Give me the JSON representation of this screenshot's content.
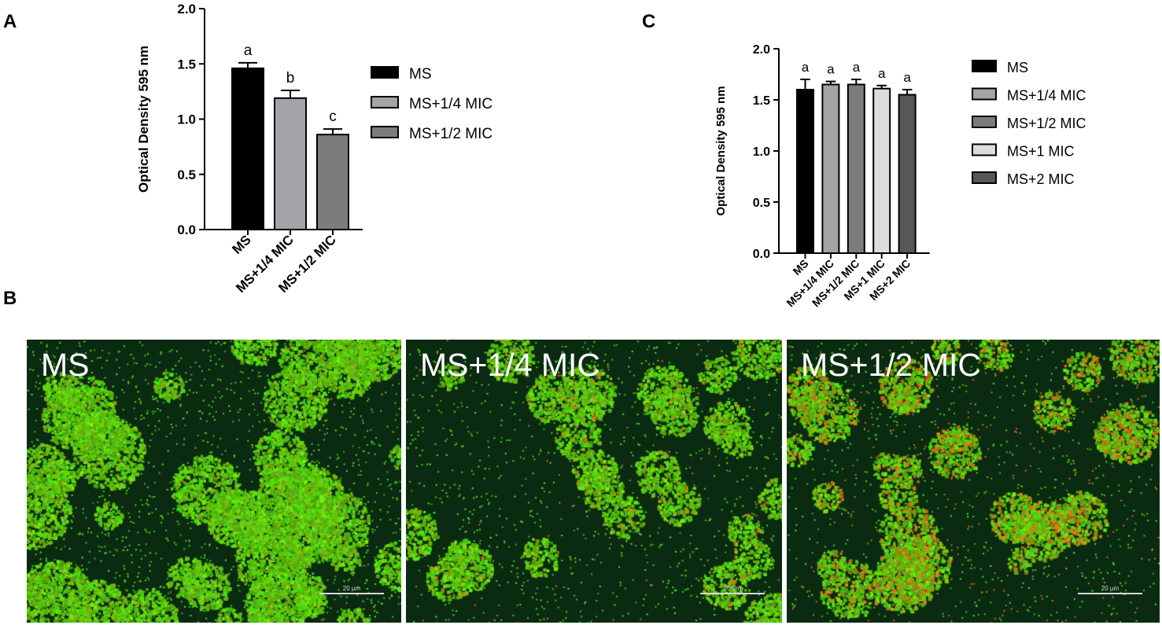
{
  "panel_labels": {
    "a": "A",
    "b": "B",
    "c": "C"
  },
  "colors": {
    "MS": "#000000",
    "MS+1/4 MIC": "#a3a3a8",
    "MS+1/2 MIC": "#7c7c7c",
    "MS+1 MIC": "#dcdcdc",
    "MS+2 MIC": "#575757"
  },
  "chart_data": [
    {
      "id": "A",
      "type": "bar",
      "ylabel": "Optical Density 595 nm",
      "xlabel": "",
      "ylim": [
        0,
        2.0
      ],
      "yticks": [
        "0.0",
        "0.5",
        "1.0",
        "1.5",
        "2.0"
      ],
      "categories": [
        "MS",
        "MS+1/4 MIC",
        "MS+1/2 MIC"
      ],
      "values": [
        1.46,
        1.19,
        0.86
      ],
      "errors": [
        0.05,
        0.07,
        0.05
      ],
      "significance": [
        "a",
        "b",
        "c"
      ],
      "legend": [
        "MS",
        "MS+1/4 MIC",
        "MS+1/2 MIC"
      ],
      "legend_position": "right"
    },
    {
      "id": "C",
      "type": "bar",
      "ylabel": "Optical Density 595 nm",
      "xlabel": "",
      "ylim": [
        0,
        2.0
      ],
      "yticks": [
        "0.0",
        "0.5",
        "1.0",
        "1.5",
        "2.0"
      ],
      "categories": [
        "MS",
        "MS+1/4 MIC",
        "MS+1/2 MIC",
        "MS+1 MIC",
        "MS+2 MIC"
      ],
      "values": [
        1.6,
        1.65,
        1.65,
        1.61,
        1.55
      ],
      "errors": [
        0.1,
        0.03,
        0.05,
        0.03,
        0.05
      ],
      "significance": [
        "a",
        "a",
        "a",
        "a",
        "a"
      ],
      "legend": [
        "MS",
        "MS+1/4 MIC",
        "MS+1/2 MIC",
        "MS+1 MIC",
        "MS+2 MIC"
      ],
      "legend_position": "right"
    }
  ],
  "micrographs": [
    {
      "label": "MS",
      "scale": "20 µm",
      "density": 0.62,
      "red_fraction": 0.0
    },
    {
      "label": "MS+1/4 MIC",
      "scale": "20 µm",
      "density": 0.42,
      "red_fraction": 0.04
    },
    {
      "label": "MS+1/2 MIC",
      "scale": "20 µm",
      "density": 0.45,
      "red_fraction": 0.25
    }
  ]
}
